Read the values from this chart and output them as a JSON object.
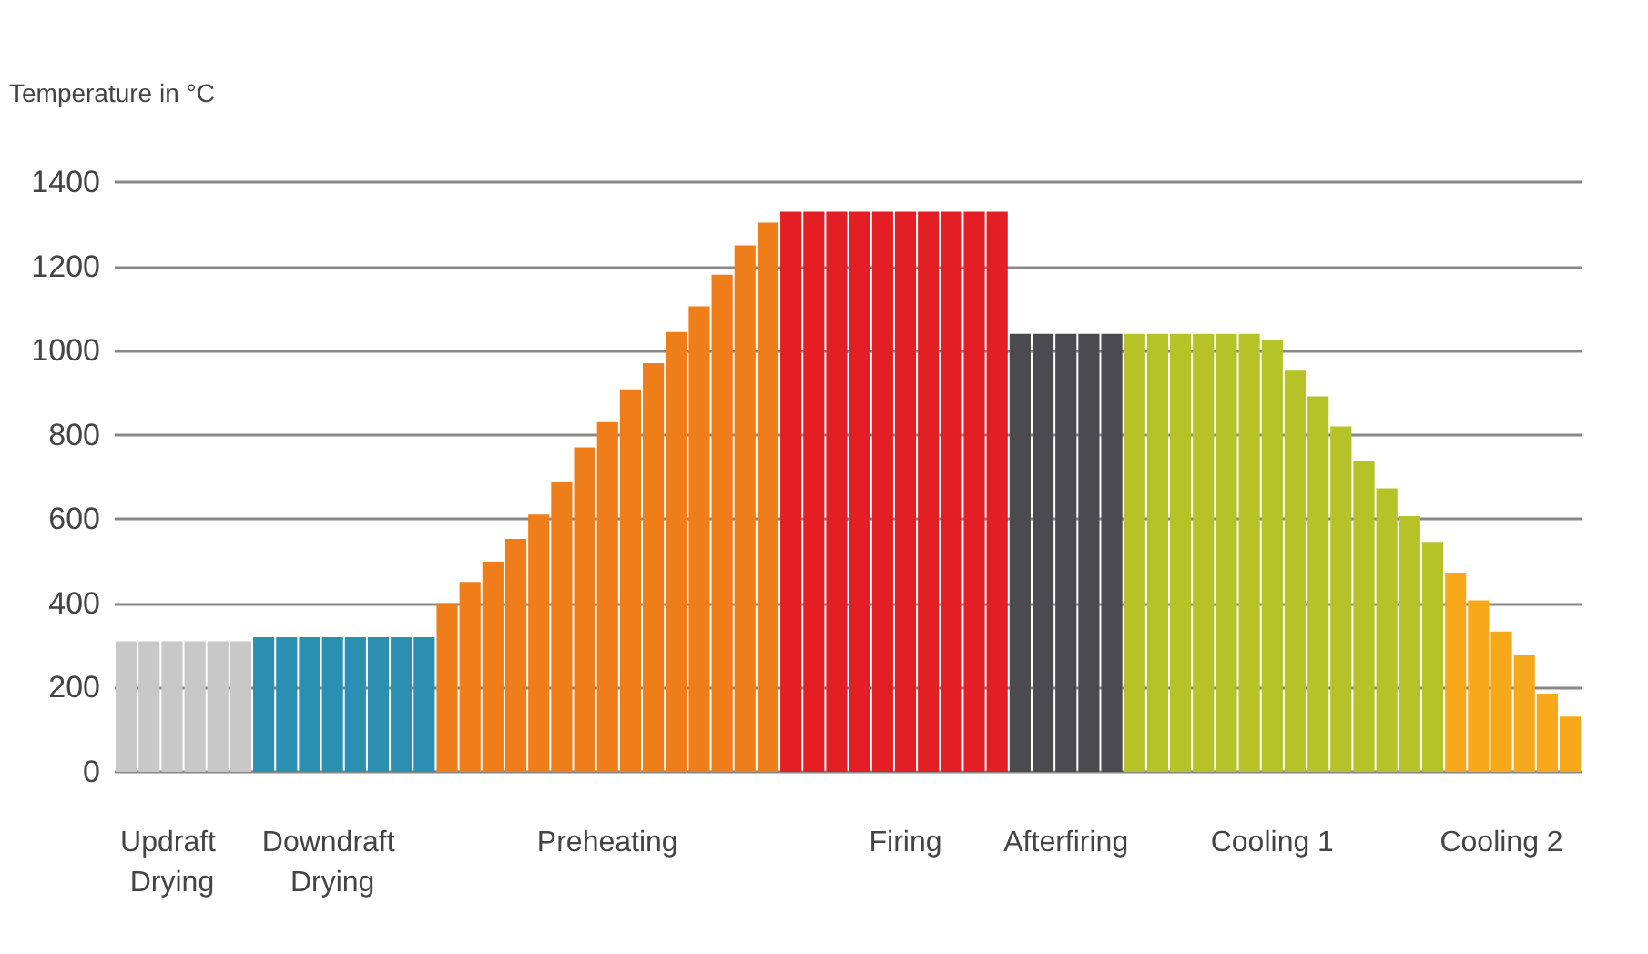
{
  "chart_data": {
    "type": "bar",
    "ylabel": "Temperature in °C",
    "categories": [
      null,
      null,
      "Updraft Drying",
      null,
      null,
      null,
      null,
      null,
      null,
      "Downdraft Drying",
      null,
      null,
      null,
      null,
      null,
      null,
      null,
      null,
      null,
      null,
      null,
      "Preheating",
      null,
      null,
      null,
      null,
      null,
      null,
      null,
      null,
      null,
      null,
      null,
      null,
      "Firing",
      null,
      null,
      null,
      null,
      null,
      null,
      "Afterfiring",
      null,
      null,
      null,
      null,
      null,
      null,
      null,
      null,
      "Cooling 1",
      null,
      null,
      null,
      null,
      null,
      null,
      null,
      null,
      null,
      "Cooling 2",
      null,
      null,
      null
    ],
    "values": [
      310,
      310,
      310,
      310,
      310,
      310,
      320,
      320,
      320,
      320,
      320,
      320,
      320,
      320,
      400,
      451,
      499,
      553,
      611,
      689,
      770,
      830,
      908,
      970,
      1044,
      1105,
      1180,
      1250,
      1304,
      1330,
      1330,
      1330,
      1330,
      1330,
      1330,
      1330,
      1330,
      1330,
      1330,
      1040,
      1040,
      1040,
      1040,
      1040,
      1040,
      1040,
      1040,
      1040,
      1040,
      1040,
      1025,
      952,
      891,
      820,
      739,
      673,
      607,
      546,
      473,
      407,
      333,
      278,
      186,
      131
    ],
    "colors": [
      "#c8c8c8",
      "#c8c8c8",
      "#c8c8c8",
      "#c8c8c8",
      "#c8c8c8",
      "#c8c8c8",
      "#2a8fb0",
      "#2a8fb0",
      "#2a8fb0",
      "#2a8fb0",
      "#2a8fb0",
      "#2a8fb0",
      "#2a8fb0",
      "#2a8fb0",
      "#ef7d1a",
      "#ef7d1a",
      "#ef7d1a",
      "#ef7d1a",
      "#ef7d1a",
      "#ef7d1a",
      "#ef7d1a",
      "#ef7d1a",
      "#ef7d1a",
      "#ef7d1a",
      "#ef7d1a",
      "#ef7d1a",
      "#ef7d1a",
      "#ef7d1a",
      "#ef7d1a",
      "#e31e24",
      "#e31e24",
      "#e31e24",
      "#e31e24",
      "#e31e24",
      "#e31e24",
      "#e31e24",
      "#e31e24",
      "#e31e24",
      "#e31e24",
      "#4a4a4f",
      "#4a4a4f",
      "#4a4a4f",
      "#4a4a4f",
      "#4a4a4f",
      "#b5c228",
      "#b5c228",
      "#b5c228",
      "#b5c228",
      "#b5c228",
      "#b5c228",
      "#b5c228",
      "#b5c228",
      "#b5c228",
      "#b5c228",
      "#b5c228",
      "#b5c228",
      "#b5c228",
      "#b5c228",
      "#f7a81b",
      "#f7a81b",
      "#f7a81b",
      "#f7a81b",
      "#f7a81b",
      "#f7a81b"
    ],
    "ylim": [
      0,
      1400
    ],
    "yticks": [
      0,
      200,
      400,
      600,
      800,
      1000,
      1200,
      1400
    ],
    "grid": "y"
  }
}
